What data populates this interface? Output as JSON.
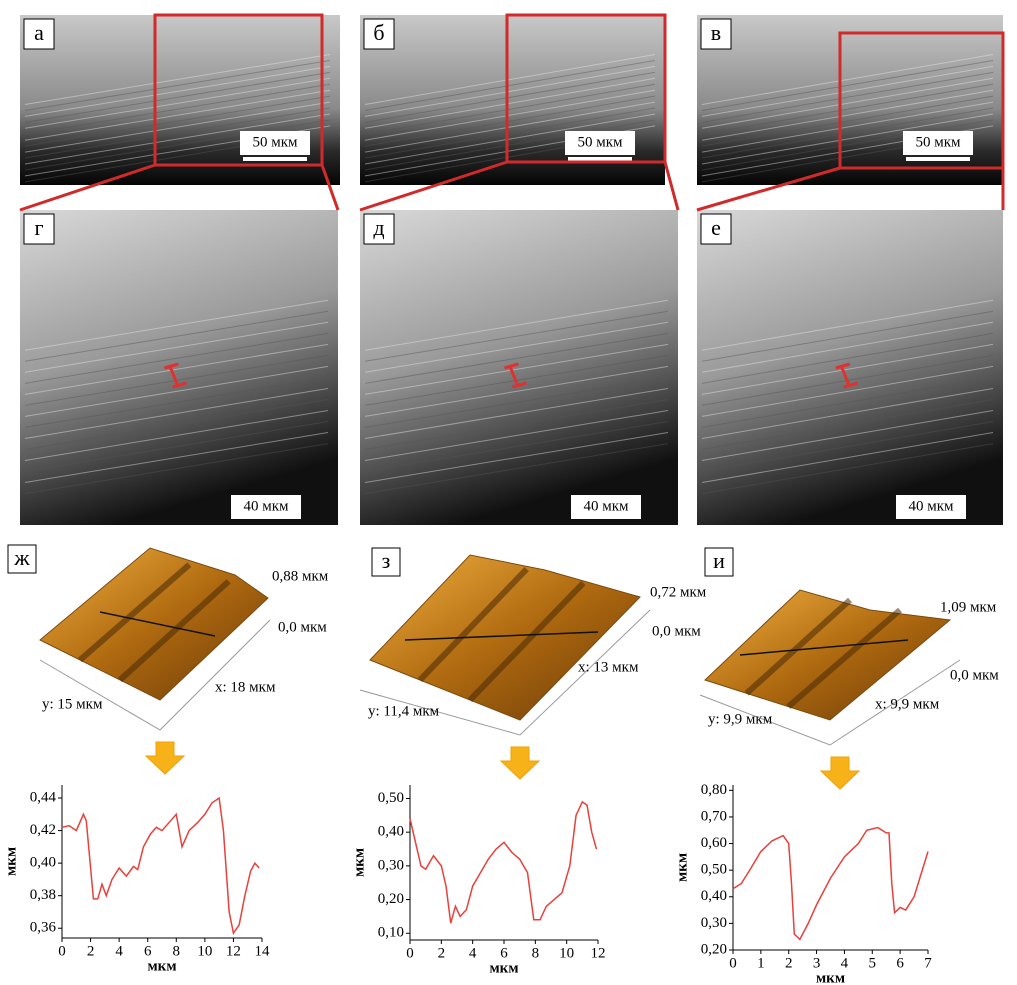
{
  "micrographs": [
    {
      "label": "а",
      "scale": "50 мкм"
    },
    {
      "label": "б",
      "scale": "50 мкм"
    },
    {
      "label": "в",
      "scale": "50 мкм"
    },
    {
      "label": "г",
      "scale": "40 мкм"
    },
    {
      "label": "д",
      "scale": "40 мкм"
    },
    {
      "label": "е",
      "scale": "40 мкм"
    }
  ],
  "afm": [
    {
      "label": "ж",
      "z_max": "0,88 мкм",
      "z_min": "0,0 мкм",
      "x_size": "x: 18 мкм",
      "y_size": "y: 15 мкм"
    },
    {
      "label": "з",
      "z_max": "0,72 мкм",
      "z_min": "0,0 мкм",
      "x_size": "x: 13 мкм",
      "y_size": "y: 11,4 мкм"
    },
    {
      "label": "и",
      "z_max": "1,09 мкм",
      "z_min": "0,0 мкм",
      "x_size": "x: 9,9 мкм",
      "y_size": "y: 9,9 мкм"
    }
  ],
  "chart_data": [
    {
      "type": "line",
      "color": "#e8403a",
      "xlabel": "мкм",
      "ylabel": "мкм",
      "x": [
        0,
        0.5,
        1,
        1.5,
        1.7,
        2.2,
        2.5,
        2.8,
        3.1,
        3.5,
        4,
        4.5,
        5,
        5.3,
        5.7,
        6.2,
        6.6,
        7,
        7.5,
        8,
        8.4,
        8.9,
        9.5,
        10,
        10.5,
        11,
        11.3,
        11.7,
        12,
        12.4,
        12.8,
        13.2,
        13.5,
        13.8
      ],
      "values": [
        0.422,
        0.423,
        0.42,
        0.43,
        0.426,
        0.378,
        0.378,
        0.387,
        0.38,
        0.39,
        0.397,
        0.392,
        0.398,
        0.396,
        0.41,
        0.418,
        0.422,
        0.42,
        0.425,
        0.43,
        0.41,
        0.42,
        0.425,
        0.43,
        0.437,
        0.44,
        0.42,
        0.37,
        0.357,
        0.362,
        0.38,
        0.395,
        0.4,
        0.397
      ],
      "xlim": [
        0,
        14
      ],
      "ylim": [
        0.354,
        0.448
      ],
      "xticks": [
        0,
        2,
        4,
        6,
        8,
        10,
        12,
        14
      ],
      "yticks": [
        {
          "value": 0.36,
          "label": "0,36"
        },
        {
          "value": 0.38,
          "label": "0,38"
        },
        {
          "value": 0.4,
          "label": "0,40"
        },
        {
          "value": 0.42,
          "label": "0,42"
        },
        {
          "value": 0.44,
          "label": "0,44"
        }
      ]
    },
    {
      "type": "line",
      "color": "#e8403a",
      "xlabel": "мкм",
      "ylabel": "мкм",
      "x": [
        0,
        0.3,
        0.7,
        1,
        1.5,
        2,
        2.3,
        2.6,
        2.9,
        3.2,
        3.6,
        4,
        4.5,
        5,
        5.5,
        6,
        6.5,
        7,
        7.5,
        7.9,
        8.3,
        8.7,
        9.2,
        9.7,
        10.2,
        10.6,
        11,
        11.3,
        11.6,
        11.9
      ],
      "values": [
        0.44,
        0.38,
        0.3,
        0.29,
        0.33,
        0.3,
        0.24,
        0.13,
        0.18,
        0.15,
        0.17,
        0.24,
        0.28,
        0.32,
        0.35,
        0.37,
        0.34,
        0.32,
        0.28,
        0.14,
        0.14,
        0.18,
        0.2,
        0.22,
        0.3,
        0.45,
        0.49,
        0.48,
        0.4,
        0.35
      ],
      "xlim": [
        0,
        12
      ],
      "ylim": [
        0.08,
        0.54
      ],
      "xticks": [
        0,
        2,
        4,
        6,
        8,
        10,
        12
      ],
      "yticks": [
        {
          "value": 0.1,
          "label": "0,10"
        },
        {
          "value": 0.2,
          "label": "0,20"
        },
        {
          "value": 0.3,
          "label": "0,30"
        },
        {
          "value": 0.4,
          "label": "0,40"
        },
        {
          "value": 0.5,
          "label": "0,50"
        }
      ]
    },
    {
      "type": "line",
      "color": "#e8403a",
      "xlabel": "мкм",
      "ylabel": "мкм",
      "x": [
        0,
        0.3,
        0.6,
        1,
        1.4,
        1.8,
        2,
        2.1,
        2.2,
        2.4,
        2.7,
        3,
        3.5,
        4,
        4.5,
        4.8,
        5.2,
        5.5,
        5.6,
        5.7,
        5.8,
        6,
        6.2,
        6.5,
        7
      ],
      "values": [
        0.43,
        0.45,
        0.5,
        0.57,
        0.61,
        0.63,
        0.6,
        0.45,
        0.26,
        0.24,
        0.3,
        0.37,
        0.47,
        0.55,
        0.6,
        0.65,
        0.66,
        0.64,
        0.64,
        0.45,
        0.34,
        0.36,
        0.35,
        0.4,
        0.57
      ],
      "xlim": [
        0,
        7
      ],
      "ylim": [
        0.2,
        0.82
      ],
      "xticks": [
        0,
        1,
        2,
        3,
        4,
        5,
        6,
        7
      ],
      "yticks": [
        {
          "value": 0.2,
          "label": "0,20"
        },
        {
          "value": 0.3,
          "label": "0,30"
        },
        {
          "value": 0.4,
          "label": "0,40"
        },
        {
          "value": 0.5,
          "label": "0,50"
        },
        {
          "value": 0.6,
          "label": "0,60"
        },
        {
          "value": 0.7,
          "label": "0,70"
        },
        {
          "value": 0.8,
          "label": "0,80"
        }
      ]
    }
  ]
}
